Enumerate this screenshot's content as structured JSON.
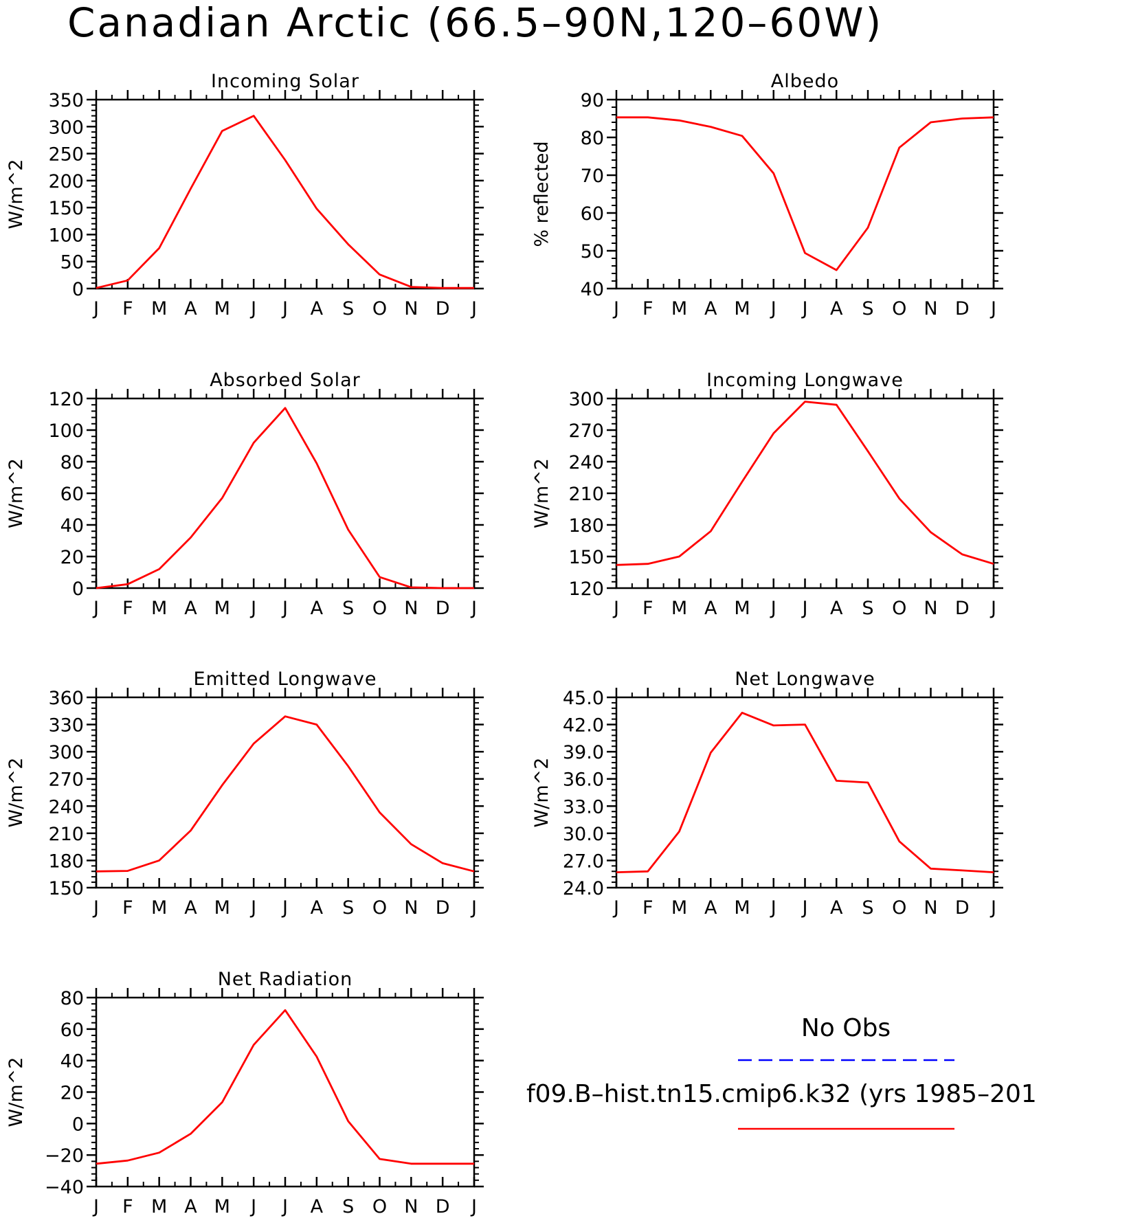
{
  "title": "Canadian Arctic (66.5–90N,120–60W)",
  "colors": {
    "model": "#ff0000",
    "obs": "#0000ff"
  },
  "legend": {
    "obs_label": "No Obs",
    "model_label": "f09.B–hist.tn15.cmip6.k32 (yrs 1985–201"
  },
  "chart_data": [
    {
      "type": "line",
      "title": "Incoming Solar",
      "ylabel": "W/m^2",
      "categories": [
        "J",
        "F",
        "M",
        "A",
        "M",
        "J",
        "J",
        "A",
        "S",
        "O",
        "N",
        "D",
        "J"
      ],
      "ylim": [
        0,
        350
      ],
      "yticks": [
        0,
        50,
        100,
        150,
        200,
        250,
        300,
        350
      ],
      "ytick_labels": [
        "0",
        "50",
        "100",
        "150",
        "200",
        "250",
        "300",
        "350"
      ],
      "series": [
        {
          "values": [
            1,
            15,
            75,
            185,
            292,
            320,
            238,
            148,
            82,
            26,
            3,
            1,
            1
          ]
        }
      ]
    },
    {
      "type": "line",
      "title": "Albedo",
      "ylabel": "% reflected",
      "categories": [
        "J",
        "F",
        "M",
        "A",
        "M",
        "J",
        "J",
        "A",
        "S",
        "O",
        "N",
        "D",
        "J"
      ],
      "ylim": [
        40,
        90
      ],
      "yticks": [
        40,
        50,
        60,
        70,
        80,
        90
      ],
      "ytick_labels": [
        "40",
        "50",
        "60",
        "70",
        "80",
        "90"
      ],
      "series": [
        {
          "values": [
            85.3,
            85.3,
            84.5,
            82.8,
            80.4,
            70.5,
            49.4,
            44.9,
            56.1,
            77.3,
            84.0,
            85.0,
            85.3
          ]
        }
      ]
    },
    {
      "type": "line",
      "title": "Absorbed Solar",
      "ylabel": "W/m^2",
      "categories": [
        "J",
        "F",
        "M",
        "A",
        "M",
        "J",
        "J",
        "A",
        "S",
        "O",
        "N",
        "D",
        "J"
      ],
      "ylim": [
        0,
        120
      ],
      "yticks": [
        0,
        20,
        40,
        60,
        80,
        100,
        120
      ],
      "ytick_labels": [
        "0",
        "20",
        "40",
        "60",
        "80",
        "100",
        "120"
      ],
      "series": [
        {
          "values": [
            0,
            2.5,
            12,
            32,
            57,
            92,
            114,
            79,
            37,
            7,
            0.5,
            0,
            0
          ]
        }
      ]
    },
    {
      "type": "line",
      "title": "Incoming Longwave",
      "ylabel": "W/m^2",
      "categories": [
        "J",
        "F",
        "M",
        "A",
        "M",
        "J",
        "J",
        "A",
        "S",
        "O",
        "N",
        "D",
        "J"
      ],
      "ylim": [
        120,
        300
      ],
      "yticks": [
        120,
        150,
        180,
        210,
        240,
        270,
        300
      ],
      "ytick_labels": [
        "120",
        "150",
        "180",
        "210",
        "240",
        "270",
        "300"
      ],
      "series": [
        {
          "values": [
            142,
            143,
            150,
            174,
            221,
            267,
            297,
            294,
            250,
            205,
            173,
            152,
            143
          ]
        }
      ]
    },
    {
      "type": "line",
      "title": "Emitted Longwave",
      "ylabel": "W/m^2",
      "categories": [
        "J",
        "F",
        "M",
        "A",
        "M",
        "J",
        "J",
        "A",
        "S",
        "O",
        "N",
        "D",
        "J"
      ],
      "ylim": [
        150,
        360
      ],
      "yticks": [
        150,
        180,
        210,
        240,
        270,
        300,
        330,
        360
      ],
      "ytick_labels": [
        "150",
        "180",
        "210",
        "240",
        "270",
        "300",
        "330",
        "360"
      ],
      "series": [
        {
          "values": [
            168,
            168.5,
            180,
            213,
            263,
            309,
            339,
            330,
            284,
            233,
            198,
            177,
            168
          ]
        }
      ]
    },
    {
      "type": "line",
      "title": "Net Longwave",
      "ylabel": "W/m^2",
      "categories": [
        "J",
        "F",
        "M",
        "A",
        "M",
        "J",
        "J",
        "A",
        "S",
        "O",
        "N",
        "D",
        "J"
      ],
      "ylim": [
        24,
        45
      ],
      "yticks": [
        24,
        27,
        30,
        33,
        36,
        39,
        42,
        45
      ],
      "ytick_labels": [
        "24.0",
        "27.0",
        "30.0",
        "33.0",
        "36.0",
        "39.0",
        "42.0",
        "45.0"
      ],
      "series": [
        {
          "values": [
            25.7,
            25.8,
            30.2,
            38.9,
            43.3,
            41.9,
            42.0,
            35.8,
            35.6,
            29.1,
            26.1,
            25.9,
            25.7
          ]
        }
      ]
    },
    {
      "type": "line",
      "title": "Net Radiation",
      "ylabel": "W/m^2",
      "categories": [
        "J",
        "F",
        "M",
        "A",
        "M",
        "J",
        "J",
        "A",
        "S",
        "O",
        "N",
        "D",
        "J"
      ],
      "ylim": [
        -40,
        80
      ],
      "yticks": [
        -40,
        -20,
        0,
        20,
        40,
        60,
        80
      ],
      "ytick_labels": [
        "−40",
        "−20",
        "0",
        "20",
        "40",
        "60",
        "80"
      ],
      "series": [
        {
          "values": [
            -25.5,
            -23.5,
            -18.5,
            -6.5,
            13.5,
            50,
            72,
            42.5,
            1.5,
            -22.5,
            -25.5,
            -25.5,
            -25.5
          ]
        }
      ]
    }
  ]
}
